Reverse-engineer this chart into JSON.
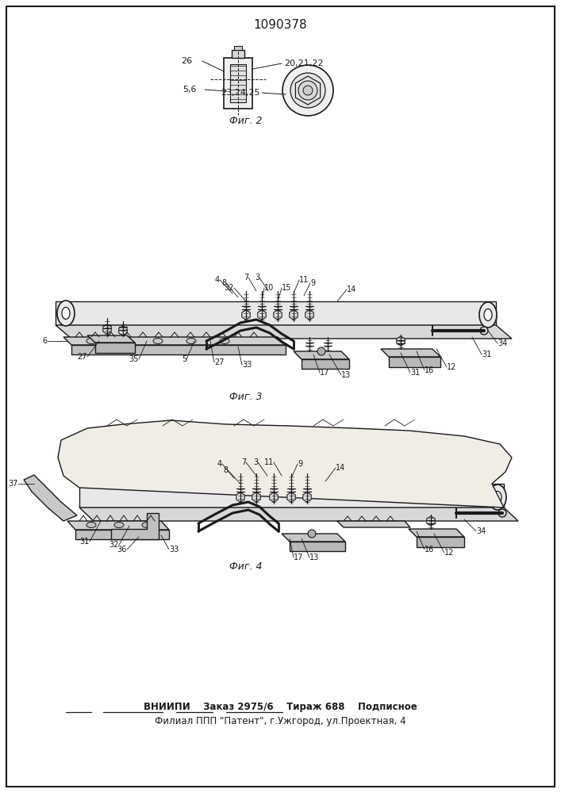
{
  "title": "1090378",
  "fig2_label": "Фиг. 2",
  "fig3_label": "Фиг. 3",
  "fig4_label": "Фиг. 4",
  "footer_line1": "ВНИИПИ    Заказ 2975/6    Тираж 688    Подписное",
  "footer_line2": "Филиал ППП \"Патент\", г.Ужгород, ул.Проектная, 4",
  "bg_color": "#ffffff",
  "line_color": "#1a1a1a"
}
